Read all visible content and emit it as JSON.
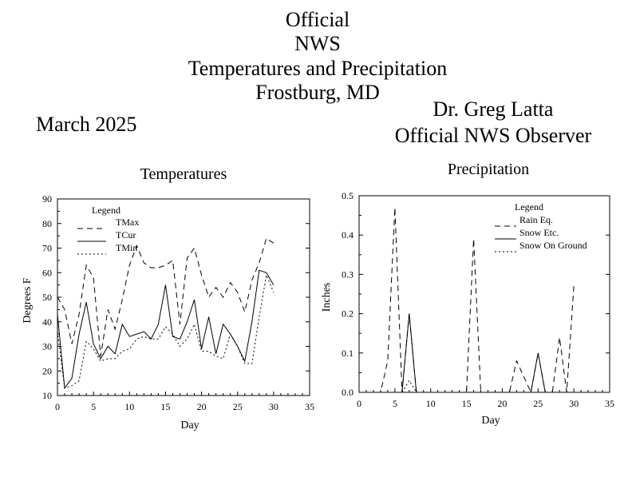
{
  "header": {
    "line1": "Official",
    "line2": "NWS",
    "line3": "Temperatures and Precipitation",
    "line4": "Frostburg, MD",
    "period": "March 2025",
    "observer_name": "Dr. Greg Latta",
    "observer_title": "Official NWS Observer"
  },
  "chart_data": [
    {
      "type": "line",
      "title": "Temperatures",
      "xlabel": "Day",
      "ylabel": "Degrees F",
      "xlim": [
        0,
        35
      ],
      "ylim": [
        10,
        90
      ],
      "xticks": [
        0,
        5,
        10,
        15,
        20,
        25,
        30,
        35
      ],
      "yticks": [
        10,
        20,
        30,
        40,
        50,
        60,
        70,
        80,
        90
      ],
      "legend_title": "Legend",
      "legend_position": "top-left",
      "x": [
        0,
        1,
        2,
        3,
        4,
        5,
        6,
        7,
        8,
        9,
        10,
        11,
        12,
        13,
        14,
        15,
        16,
        17,
        18,
        19,
        20,
        21,
        22,
        23,
        24,
        25,
        26,
        27,
        28,
        29,
        30
      ],
      "series": [
        {
          "name": "TMax",
          "dash": "dashed",
          "values": [
            50,
            45,
            31,
            43,
            63,
            58,
            26,
            45,
            37,
            49,
            63,
            71,
            64,
            62,
            62,
            63,
            65,
            39,
            66,
            70,
            59,
            50,
            54,
            50,
            56,
            52,
            44,
            57,
            64,
            74,
            72
          ]
        },
        {
          "name": "TCur",
          "dash": "solid",
          "values": [
            43,
            13,
            17,
            35,
            48,
            31,
            25,
            30,
            27,
            39,
            34,
            35,
            36,
            33,
            39,
            55,
            34,
            33,
            40,
            49,
            29,
            42,
            27,
            39,
            35,
            30,
            24,
            40,
            61,
            60,
            55
          ]
        },
        {
          "name": "TMin",
          "dash": "dotted",
          "values": [
            36,
            13,
            14,
            16,
            32,
            29,
            24,
            25,
            25,
            28,
            29,
            33,
            34,
            33,
            33,
            38,
            35,
            30,
            33,
            39,
            28,
            28,
            26,
            25,
            35,
            30,
            23,
            23,
            42,
            59,
            52
          ]
        }
      ]
    },
    {
      "type": "line",
      "title": "Precipitation",
      "xlabel": "Day",
      "ylabel": "Inches",
      "xlim": [
        0,
        35
      ],
      "ylim": [
        0,
        0.5
      ],
      "xticks": [
        0,
        5,
        10,
        15,
        20,
        25,
        30,
        35
      ],
      "yticks": [
        "0.0",
        "0.1",
        "0.2",
        "0.3",
        "0.4",
        "0.5"
      ],
      "legend_title": "Legend",
      "legend_position": "top-right",
      "x": [
        1,
        2,
        3,
        4,
        5,
        6,
        7,
        8,
        9,
        10,
        11,
        12,
        13,
        14,
        15,
        16,
        17,
        18,
        19,
        20,
        21,
        22,
        23,
        24,
        25,
        26,
        27,
        28,
        29,
        30
      ],
      "series": [
        {
          "name": "Rain Eq.",
          "dash": "dashed",
          "values": [
            0,
            0,
            0,
            0.08,
            0.47,
            0,
            0.2,
            0,
            0,
            0,
            0,
            0,
            0,
            0,
            0,
            0.39,
            0,
            0,
            0,
            0,
            0,
            0.08,
            0.04,
            0,
            0.1,
            0,
            0,
            0.14,
            0,
            0.27
          ]
        },
        {
          "name": "Snow Etc.",
          "dash": "solid",
          "values": [
            0,
            0,
            0,
            0,
            0,
            0,
            0.2,
            0,
            0,
            0,
            0,
            0,
            0,
            0,
            0,
            0,
            0,
            0,
            0,
            0,
            0,
            0,
            0,
            0,
            0.1,
            0,
            0,
            0,
            0,
            0
          ]
        },
        {
          "name": "Snow On Ground",
          "dash": "dotted",
          "values": [
            0,
            0,
            0,
            0,
            0,
            0,
            0.03,
            0,
            0,
            0,
            0,
            0,
            0,
            0,
            0,
            0,
            0,
            0,
            0,
            0,
            0,
            0,
            0,
            0,
            0,
            0,
            0,
            0,
            0,
            0
          ]
        }
      ]
    }
  ]
}
